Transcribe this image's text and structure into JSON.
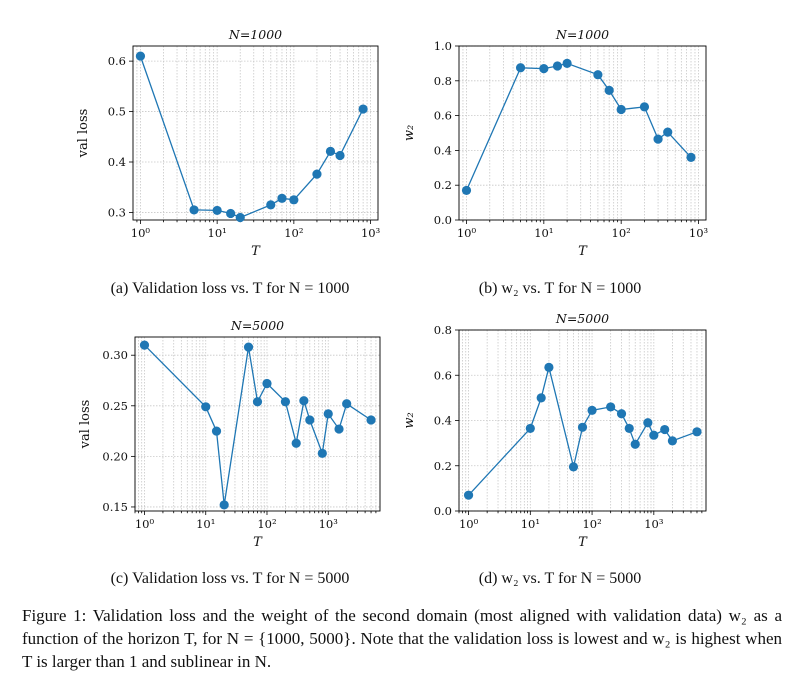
{
  "chart_data": [
    {
      "type": "line",
      "title": "N=1000",
      "xlabel": "T",
      "ylabel": "val loss",
      "xscale": "log",
      "xlim": [
        0.8,
        1250
      ],
      "ylim": [
        0.285,
        0.63
      ],
      "xticks": [
        "10⁰",
        "10¹",
        "10²",
        "10³"
      ],
      "yticks": [
        "0.3",
        "0.4",
        "0.5",
        "0.6"
      ],
      "grid": true,
      "x": [
        1,
        5,
        10,
        15,
        20,
        50,
        70,
        100,
        200,
        300,
        400,
        800
      ],
      "y": [
        0.61,
        0.305,
        0.304,
        0.298,
        0.29,
        0.315,
        0.328,
        0.325,
        0.376,
        0.421,
        0.413,
        0.505
      ],
      "caption": "(a) Validation loss vs. T for N = 1000"
    },
    {
      "type": "line",
      "title": "N=1000",
      "xlabel": "T",
      "ylabel": "w₂",
      "xscale": "log",
      "xlim": [
        0.8,
        1250
      ],
      "ylim": [
        0,
        1
      ],
      "xticks": [
        "10⁰",
        "10¹",
        "10²",
        "10³"
      ],
      "yticks": [
        "0.0",
        "0.2",
        "0.4",
        "0.6",
        "0.8",
        "1.0"
      ],
      "grid": true,
      "x": [
        1,
        5,
        10,
        15,
        20,
        50,
        70,
        100,
        200,
        300,
        400,
        800
      ],
      "y": [
        0.17,
        0.875,
        0.87,
        0.885,
        0.9,
        0.835,
        0.745,
        0.635,
        0.65,
        0.465,
        0.505,
        0.36
      ],
      "caption": "(b) w₂ vs. T for N = 1000"
    },
    {
      "type": "line",
      "title": "N=5000",
      "xlabel": "T",
      "ylabel": "val loss",
      "xscale": "log",
      "xlim": [
        0.7,
        7000
      ],
      "ylim": [
        0.146,
        0.318
      ],
      "xticks": [
        "10⁰",
        "10¹",
        "10²",
        "10³"
      ],
      "yticks": [
        "0.15",
        "0.20",
        "0.25",
        "0.30"
      ],
      "grid": true,
      "x": [
        1,
        10,
        15,
        20,
        50,
        70,
        100,
        200,
        300,
        400,
        500,
        800,
        1000,
        1500,
        2000,
        5000
      ],
      "y": [
        0.31,
        0.249,
        0.225,
        0.152,
        0.308,
        0.254,
        0.272,
        0.254,
        0.213,
        0.255,
        0.236,
        0.203,
        0.242,
        0.227,
        0.252,
        0.236
      ],
      "caption": "(c) Validation loss vs. T for N = 5000"
    },
    {
      "type": "line",
      "title": "N=5000",
      "xlabel": "T",
      "ylabel": "w₂",
      "xscale": "log",
      "xlim": [
        0.7,
        7000
      ],
      "ylim": [
        0,
        0.8
      ],
      "xticks": [
        "10⁰",
        "10¹",
        "10²",
        "10³"
      ],
      "yticks": [
        "0.0",
        "0.2",
        "0.4",
        "0.6",
        "0.8"
      ],
      "grid": true,
      "x": [
        1,
        10,
        15,
        20,
        50,
        70,
        100,
        200,
        300,
        400,
        500,
        800,
        1000,
        1500,
        2000,
        5000
      ],
      "y": [
        0.07,
        0.365,
        0.5,
        0.635,
        0.195,
        0.37,
        0.445,
        0.46,
        0.43,
        0.365,
        0.295,
        0.39,
        0.335,
        0.36,
        0.31,
        0.35
      ],
      "caption": "(d) w₂ vs. T for N = 5000"
    }
  ],
  "style": {
    "series_color": "#1f77b4",
    "grid_color": "#c8c8c8"
  },
  "figure_caption": "Figure 1: Validation loss and the weight of the second domain (most aligned with validation data) w₂ as a function of the horizon T, for N = {1000, 5000}. Note that the validation loss is lowest and w₂ is highest when T is larger than 1 and sublinear in N."
}
